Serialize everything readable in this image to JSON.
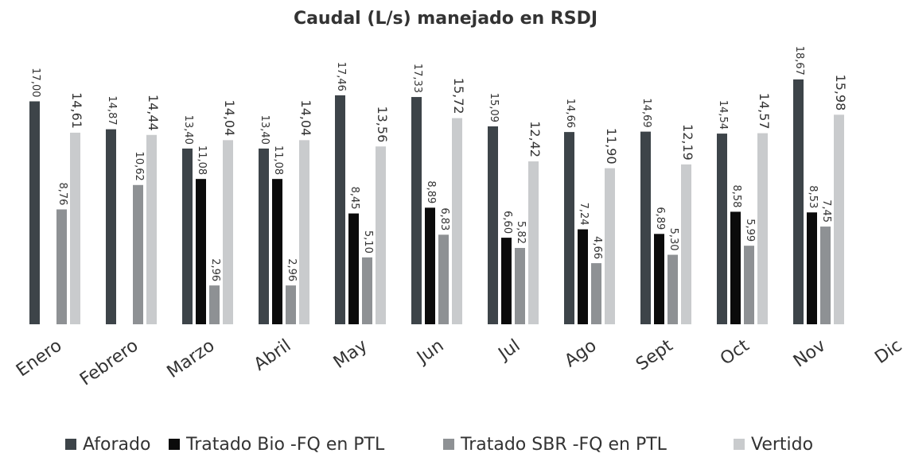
{
  "chart_data": {
    "type": "bar",
    "title": "Caudal (L/s) manejado en RSDJ",
    "categories": [
      "Enero",
      "Febrero",
      "Marzo",
      "Abril",
      "May",
      "Jun",
      "Jul",
      "Ago",
      "Sept",
      "Oct",
      "Nov",
      "Dic"
    ],
    "series": [
      {
        "name": "Aforado",
        "color": "#3d4449",
        "values": [
          17.0,
          14.87,
          13.4,
          13.4,
          17.46,
          17.33,
          15.09,
          14.66,
          14.69,
          14.54,
          18.67,
          null
        ],
        "value_labels": [
          "17,00",
          "14,87",
          "13,40",
          "13,40",
          "17,46",
          "17,33",
          "15,09",
          "14,66",
          "14,69",
          "14,54",
          "18,67",
          null
        ]
      },
      {
        "name": "Tratado Bio -FQ en PTL",
        "color": "#0b0b0b",
        "values": [
          null,
          null,
          11.08,
          11.08,
          8.45,
          8.89,
          6.6,
          7.24,
          6.89,
          8.58,
          8.53,
          null
        ],
        "value_labels": [
          null,
          null,
          "11,08",
          "11,08",
          "8,45",
          "8,89",
          "6,60",
          "7,24",
          "6,89",
          "8,58",
          "8,53",
          null
        ]
      },
      {
        "name": "Tratado SBR -FQ en PTL",
        "color": "#8e9194",
        "values": [
          8.76,
          10.62,
          2.96,
          2.96,
          5.1,
          6.83,
          5.82,
          4.66,
          5.3,
          5.99,
          7.45,
          null
        ],
        "value_labels": [
          "8,76",
          "10,62",
          "2,96",
          "2,96",
          "5,10",
          "6,83",
          "5,82",
          "4,66",
          "5,30",
          "5,99",
          "7,45",
          null
        ]
      },
      {
        "name": "Vertido",
        "color": "#c9cbcd",
        "values": [
          14.61,
          14.44,
          14.04,
          14.04,
          13.56,
          15.72,
          12.42,
          11.9,
          12.19,
          14.57,
          15.98,
          null
        ],
        "value_labels": [
          "14,61",
          "14,44",
          "14,04",
          "14,04",
          "13,56",
          "15,72",
          "12,42",
          "11,90",
          "12,19",
          "14,57",
          "15,98",
          null
        ]
      }
    ],
    "ylim": [
      0,
      20
    ],
    "legend": "bottom"
  }
}
